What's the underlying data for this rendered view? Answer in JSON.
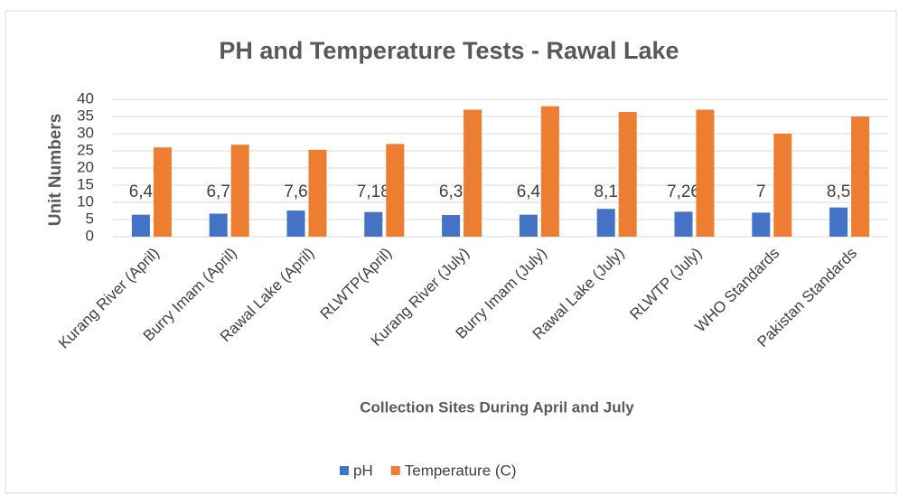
{
  "chart_data": {
    "type": "bar",
    "title": "PH and Temperature Tests - Rawal Lake",
    "x_label": "Collection Sites During April and July",
    "y_label": "Unit Numbers",
    "categories": [
      "Kurang River (April)",
      "Burry Imam (April)",
      "Rawal Lake (April)",
      "RLWTP(April)",
      "Kurang River (July)",
      "Burry Imam (July)",
      "Rawal Lake (July)",
      "RLWTP (July)",
      "WHO Standards",
      "Pakistan Standards"
    ],
    "series": [
      {
        "name": "pH",
        "color": "#4472c4",
        "values": [
          6.4,
          6.7,
          7.6,
          7.18,
          6.3,
          6.4,
          8.1,
          7.26,
          7,
          8.5
        ],
        "value_labels": [
          "6,4",
          "6,7",
          "7,6",
          "7,18",
          "6,3",
          "6,4",
          "8,1",
          "7,26",
          "7",
          "8,5"
        ]
      },
      {
        "name": "Temperature (C)",
        "color": "#ed7d31",
        "values": [
          26,
          26.8,
          25.3,
          27,
          37,
          38,
          36.3,
          37,
          30,
          35
        ]
      }
    ],
    "ylim": [
      0,
      40
    ],
    "yticks": [
      0,
      5,
      10,
      15,
      20,
      25,
      30,
      35,
      40
    ],
    "grid": true,
    "legend": "bottom"
  }
}
